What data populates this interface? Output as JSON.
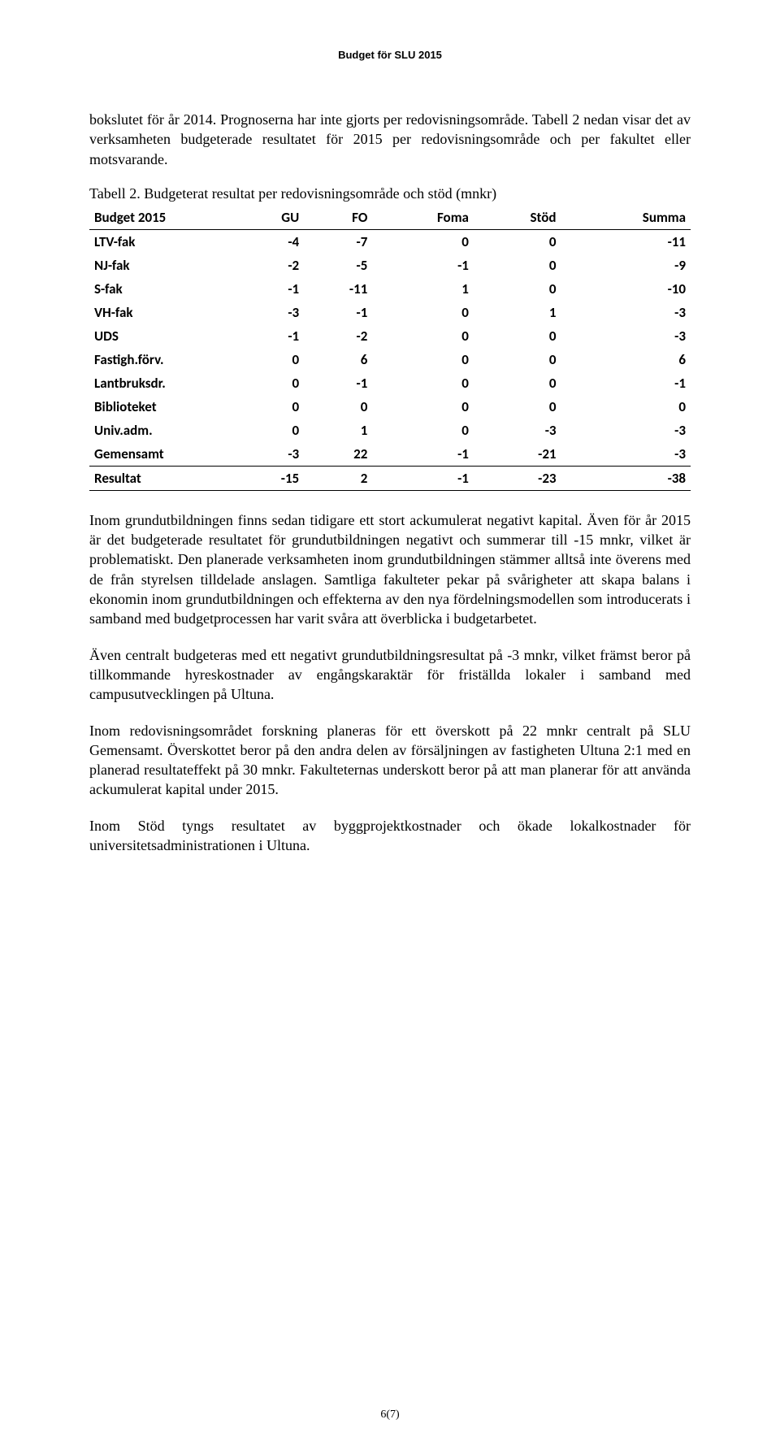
{
  "header": "Budget för SLU 2015",
  "intro": "bokslutet för år 2014. Prognoserna har inte gjorts per redovisningsområde. Tabell 2 nedan visar det av verksamheten budgeterade resultatet för 2015 per redovisningsområde och per fakultet eller motsvarande.",
  "table_caption": "Tabell 2. Budgeterat resultat per redovisningsområde och stöd (mnkr)",
  "table": {
    "type": "table",
    "font_family": "Calibri",
    "font_size": 17,
    "header_border_color": "#000000",
    "text_color": "#000000",
    "background_color": "#ffffff",
    "columns": [
      "Budget 2015",
      "GU",
      "FO",
      "Foma",
      "Stöd",
      "Summa"
    ],
    "col_align": [
      "left",
      "right",
      "right",
      "right",
      "right",
      "right"
    ],
    "rows": [
      {
        "label": "LTV-fak",
        "vals": [
          "-4",
          "-7",
          "0",
          "0",
          "-11"
        ],
        "bold": true
      },
      {
        "label": "NJ-fak",
        "vals": [
          "-2",
          "-5",
          "-1",
          "0",
          "-9"
        ],
        "bold": true
      },
      {
        "label": "S-fak",
        "vals": [
          "-1",
          "-11",
          "1",
          "0",
          "-10"
        ],
        "bold": true
      },
      {
        "label": "VH-fak",
        "vals": [
          "-3",
          "-1",
          "0",
          "1",
          "-3"
        ],
        "bold": true
      },
      {
        "label": "UDS",
        "vals": [
          "-1",
          "-2",
          "0",
          "0",
          "-3"
        ],
        "bold": true
      },
      {
        "label": "Fastigh.förv.",
        "vals": [
          "0",
          "6",
          "0",
          "0",
          "6"
        ],
        "bold": true
      },
      {
        "label": "Lantbruksdr.",
        "vals": [
          "0",
          "-1",
          "0",
          "0",
          "-1"
        ],
        "bold": true
      },
      {
        "label": "Biblioteket",
        "vals": [
          "0",
          "0",
          "0",
          "0",
          "0"
        ],
        "bold": true
      },
      {
        "label": "Univ.adm.",
        "vals": [
          "0",
          "1",
          "0",
          "-3",
          "-3"
        ],
        "bold": true
      },
      {
        "label": "Gemensamt",
        "vals": [
          "-3",
          "22",
          "-1",
          "-21",
          "-3"
        ],
        "bold": true
      }
    ],
    "result_row": {
      "label": "Resultat",
      "vals": [
        "-15",
        "2",
        "-1",
        "-23",
        "-38"
      ]
    }
  },
  "body_paragraphs": [
    "Inom grundutbildningen finns sedan tidigare ett stort ackumulerat negativt kapital. Även för år 2015 är det budgeterade resultatet för grundutbildningen negativt och summerar till -15 mnkr, vilket är problematiskt. Den planerade verksamheten inom grundutbildningen stämmer alltså inte överens med de från styrelsen tilldelade anslagen. Samtliga fakulteter pekar på svårigheter att skapa balans i ekonomin inom grundutbildningen och effekterna av den nya fördelningsmodellen som introducerats i samband med budgetprocessen har varit svåra att överblicka i budgetarbetet.",
    "Även centralt budgeteras med ett negativt grundutbildningsresultat på -3 mnkr, vilket främst beror på tillkommande hyreskostnader av engångskaraktär för friställda lokaler i samband med campusutvecklingen på Ultuna.",
    "Inom redovisningsområdet forskning planeras för ett överskott på 22 mnkr centralt på SLU Gemensamt. Överskottet beror på den andra delen av försäljningen av fastigheten Ultuna 2:1 med en planerad resultateffekt på 30 mnkr. Fakulteternas underskott beror på att man planerar för att använda ackumulerat kapital under 2015.",
    "Inom Stöd tyngs resultatet av byggprojektkostnader och ökade lokalkostnader för universitetsadministrationen i Ultuna."
  ],
  "footer": "6(7)"
}
